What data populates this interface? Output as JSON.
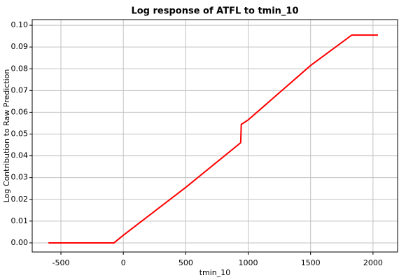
{
  "chart_data": {
    "type": "line",
    "title": "Log response of ATFL to tmin_10",
    "x_label": "tmin_10",
    "y_label": "Log Contribution to Raw Prediction",
    "x": [
      -600,
      -75,
      0,
      500,
      940,
      945,
      960,
      1000,
      1500,
      1830,
      2040
    ],
    "series": [
      {
        "name": "ATFL",
        "color": "#ff0000",
        "values": [
          0,
          0,
          0.0035,
          0.0255,
          0.046,
          0.0545,
          0.055,
          0.0565,
          0.0815,
          0.0955,
          0.0955
        ]
      }
    ],
    "xlim": [
      -730,
      2197
    ],
    "xticks": [
      -500,
      0,
      500,
      1000,
      1500,
      2000
    ],
    "ylim": [
      -0.0042,
      0.1026
    ],
    "yticks": [
      {
        "value": 0,
        "label": "0.00"
      },
      {
        "value": 0.01,
        "label": "0.01"
      },
      {
        "value": 0.02,
        "label": "0.02"
      },
      {
        "value": 0.03,
        "label": "0.03"
      },
      {
        "value": 0.04,
        "label": "0.04"
      },
      {
        "value": 0.05,
        "label": "0.05"
      },
      {
        "value": 0.06,
        "label": "0.06"
      },
      {
        "value": 0.07,
        "label": "0.07"
      },
      {
        "value": 0.08,
        "label": "0.08"
      },
      {
        "value": 0.09,
        "label": "0.09"
      },
      {
        "value": 0.1,
        "label": "0.10"
      }
    ],
    "grid": true
  }
}
